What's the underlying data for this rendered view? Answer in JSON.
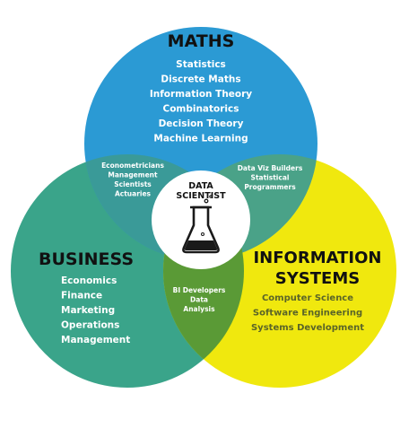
{
  "colors": {
    "maths": "#2b9ad4",
    "business": "#3aa48a",
    "info_systems": "#f0e80e",
    "maths_business": "#3a9a98",
    "maths_info": "#4aa288",
    "business_info": "#5a9a36",
    "center_fill": "#ffffff",
    "flask": "#1a1a1a",
    "title_text": "#111111",
    "item_text_light": "#ffffff",
    "item_text_dark": "#5a6428"
  },
  "maths": {
    "title": "MATHS",
    "items": [
      "Statistics",
      "Discrete Maths",
      "Information Theory",
      "Combinatorics",
      "Decision Theory",
      "Machine Learning"
    ]
  },
  "business": {
    "title": "BUSINESS",
    "items": [
      "Economics",
      "Finance",
      "Marketing",
      "Operations",
      "Management"
    ]
  },
  "info_systems": {
    "title_line1": "INFORMATION",
    "title_line2": "SYSTEMS",
    "items": [
      "Computer Science",
      "Software Engineering",
      "Systems Development"
    ]
  },
  "maths_business": {
    "items": [
      "Econometricians",
      "Management",
      "Scientists",
      "Actuaries"
    ]
  },
  "maths_info": {
    "items": [
      "Data Viz Builders",
      "Statistical",
      "Programmers"
    ]
  },
  "business_info": {
    "items": [
      "BI Developers",
      "Data",
      "Analysis"
    ]
  },
  "center": {
    "line1": "DATA",
    "line2": "SCIENTIST",
    "icon": "flask-icon"
  }
}
